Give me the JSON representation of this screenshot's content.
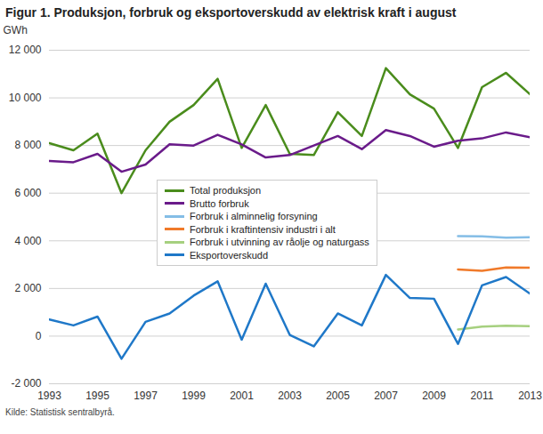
{
  "chart_data": {
    "type": "line",
    "title": "Figur 1. Produksjon, forbruk og eksportoverskudd av elektrisk kraft i august",
    "y_label": "GWh",
    "caption": "Kilde: Statistisk sentralbyrå.",
    "x": [
      1993,
      1994,
      1995,
      1996,
      1997,
      1998,
      1999,
      2000,
      2001,
      2002,
      2003,
      2004,
      2005,
      2006,
      2007,
      2008,
      2009,
      2010,
      2011,
      2012,
      2013
    ],
    "xlim": [
      1993,
      2013
    ],
    "xticks": [
      1993,
      1995,
      1997,
      1999,
      2001,
      2003,
      2005,
      2007,
      2009,
      2011,
      2013
    ],
    "ylim": [
      -2000,
      12000
    ],
    "yticks": [
      {
        "value": -2000,
        "label": "-2 000"
      },
      0,
      {
        "value": 2000,
        "label": "2 000"
      },
      {
        "value": 4000,
        "label": "4 000"
      },
      {
        "value": 6000,
        "label": "6 000"
      },
      {
        "value": 8000,
        "label": "8 000"
      },
      {
        "value": 10000,
        "label": "10 000"
      },
      {
        "value": 12000,
        "label": "12 000"
      }
    ],
    "grid": true,
    "legend": "inside",
    "series": [
      {
        "name": "Total produksjon",
        "color": "#4a8c1c",
        "values": [
          8100,
          7800,
          8500,
          6000,
          7800,
          9000,
          9700,
          10800,
          7900,
          9700,
          7650,
          7600,
          9400,
          8400,
          11250,
          10150,
          9550,
          7900,
          10450,
          11050,
          10150
        ]
      },
      {
        "name": "Brutto forbruk",
        "color": "#6a1b8a",
        "values": [
          7350,
          7300,
          7650,
          6900,
          7200,
          8050,
          8000,
          8450,
          8050,
          7500,
          7600,
          8000,
          8400,
          7850,
          8650,
          8400,
          7950,
          8200,
          8300,
          8550,
          8350
        ]
      },
      {
        "name": "Forbruk i alminnelig forsyning",
        "color": "#84bde6",
        "values": [
          null,
          null,
          null,
          null,
          null,
          null,
          null,
          null,
          null,
          null,
          null,
          null,
          null,
          null,
          null,
          null,
          null,
          4200,
          4190,
          4130,
          4150
        ]
      },
      {
        "name": "Forbruk i kraftintensiv industri i alt",
        "color": "#f07a2a",
        "values": [
          null,
          null,
          null,
          null,
          null,
          null,
          null,
          null,
          null,
          null,
          null,
          null,
          null,
          null,
          null,
          null,
          null,
          2800,
          2740,
          2880,
          2870
        ]
      },
      {
        "name": "Forbruk i utvinning av råolje og naturgass",
        "color": "#a6d07f",
        "values": [
          null,
          null,
          null,
          null,
          null,
          null,
          null,
          null,
          null,
          null,
          null,
          null,
          null,
          null,
          null,
          null,
          null,
          280,
          400,
          440,
          420
        ]
      },
      {
        "name": "Eksportoverskudd",
        "color": "#1f78c8",
        "values": [
          700,
          450,
          820,
          -950,
          600,
          950,
          1700,
          2300,
          -150,
          2200,
          50,
          -430,
          950,
          450,
          2570,
          1600,
          1570,
          -330,
          2130,
          2480,
          1780
        ]
      }
    ]
  }
}
